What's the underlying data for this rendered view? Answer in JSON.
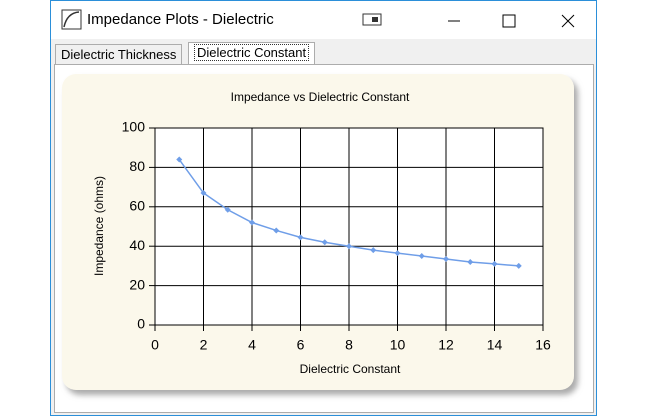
{
  "window": {
    "title": "Impedance Plots - Dielectric",
    "tabs": [
      "Dielectric Thickness",
      "Dielectric Constant"
    ]
  },
  "chart_data": {
    "type": "line",
    "title": "Impedance vs Dielectric Constant",
    "x_label": "Dielectric Constant",
    "y_label": "Impedance (ohms)",
    "x": [
      1,
      2,
      3,
      4,
      5,
      6,
      7,
      8,
      9,
      10,
      11,
      12,
      13,
      14,
      15
    ],
    "values": [
      84,
      67,
      58.5,
      52,
      48,
      44.5,
      42,
      40,
      38,
      36.5,
      35,
      33.5,
      32,
      31,
      30
    ],
    "color": "#6f9ee8",
    "xlim": [
      0,
      16
    ],
    "ylim": [
      0,
      100
    ],
    "xticks": [
      0,
      2,
      4,
      6,
      8,
      10,
      12,
      14,
      16
    ],
    "yticks": [
      0,
      20,
      40,
      60,
      80,
      100
    ],
    "grid": true
  }
}
